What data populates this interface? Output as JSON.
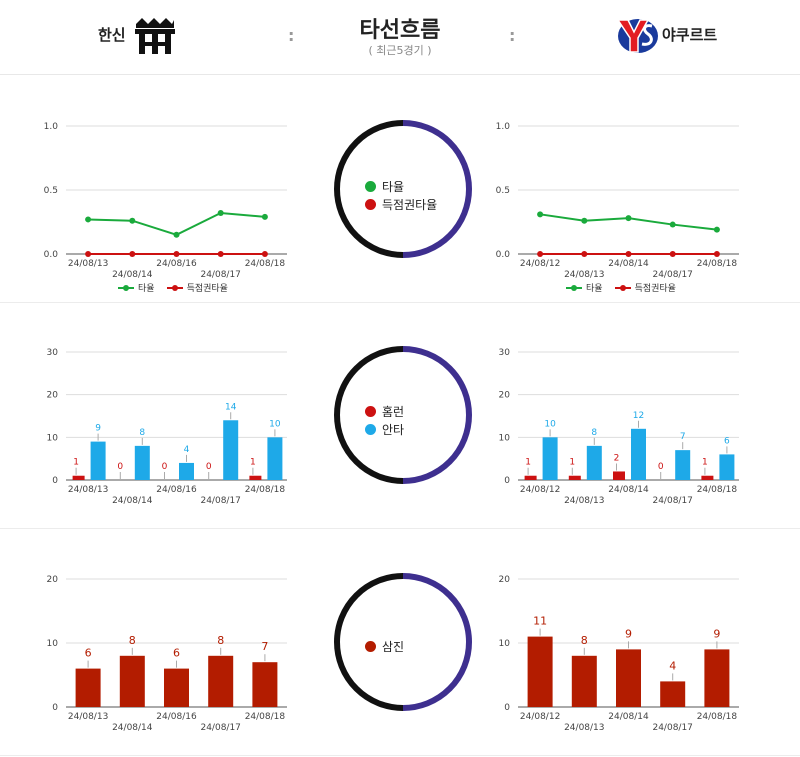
{
  "header": {
    "home_team": "한신",
    "away_team": "야쿠르트",
    "title": "타선흐름",
    "subtitle": "( 최근5경기 )",
    "separator": ":"
  },
  "colors": {
    "avg": "#1aaa3c",
    "risp": "#cc1111",
    "homerun": "#cc1111",
    "hits": "#1ea9e8",
    "strikeouts": "#b31c00",
    "ring_left": "#111111",
    "ring_right": "#3e2f8f"
  },
  "rings": [
    {
      "legend": [
        {
          "label": "타율",
          "color": "#1aaa3c"
        },
        {
          "label": "득점권타율",
          "color": "#cc1111"
        }
      ]
    },
    {
      "legend": [
        {
          "label": "홈런",
          "color": "#cc1111"
        },
        {
          "label": "안타",
          "color": "#1ea9e8"
        }
      ]
    },
    {
      "legend": [
        {
          "label": "삼진",
          "color": "#b31c00"
        }
      ]
    }
  ],
  "line_legend": {
    "avg": "타율",
    "risp": "득점권타율"
  },
  "chart_data": [
    {
      "id": "home_avg",
      "type": "line",
      "x": [
        "24/08/13",
        "24/08/14",
        "24/08/16",
        "24/08/17",
        "24/08/18"
      ],
      "ylim": [
        0,
        1
      ],
      "yticks": [
        "0.0",
        "0.5",
        "1.0"
      ],
      "series": [
        {
          "name": "타율",
          "values": [
            0.27,
            0.26,
            0.15,
            0.32,
            0.29
          ]
        },
        {
          "name": "득점권타율",
          "values": [
            0.0,
            0.0,
            0.0,
            0.0,
            0.0
          ]
        }
      ]
    },
    {
      "id": "away_avg",
      "type": "line",
      "x": [
        "24/08/12",
        "24/08/13",
        "24/08/14",
        "24/08/17",
        "24/08/18"
      ],
      "ylim": [
        0,
        1
      ],
      "yticks": [
        "0.0",
        "0.5",
        "1.0"
      ],
      "series": [
        {
          "name": "타율",
          "values": [
            0.31,
            0.26,
            0.28,
            0.23,
            0.19
          ]
        },
        {
          "name": "득점권타율",
          "values": [
            0.0,
            0.0,
            0.0,
            0.0,
            0.0
          ]
        }
      ]
    },
    {
      "id": "home_hits",
      "type": "bar",
      "x": [
        "24/08/13",
        "24/08/14",
        "24/08/16",
        "24/08/17",
        "24/08/18"
      ],
      "ylim": [
        0,
        30
      ],
      "yticks": [
        "0",
        "10",
        "20",
        "30"
      ],
      "series": [
        {
          "name": "홈런",
          "values": [
            1,
            0,
            0,
            0,
            1
          ]
        },
        {
          "name": "안타",
          "values": [
            9,
            8,
            4,
            14,
            10
          ]
        }
      ]
    },
    {
      "id": "away_hits",
      "type": "bar",
      "x": [
        "24/08/12",
        "24/08/13",
        "24/08/14",
        "24/08/17",
        "24/08/18"
      ],
      "ylim": [
        0,
        30
      ],
      "yticks": [
        "0",
        "10",
        "20",
        "30"
      ],
      "series": [
        {
          "name": "홈런",
          "values": [
            1,
            1,
            2,
            0,
            1
          ]
        },
        {
          "name": "안타",
          "values": [
            10,
            8,
            12,
            7,
            6
          ]
        }
      ]
    },
    {
      "id": "home_so",
      "type": "bar",
      "x": [
        "24/08/13",
        "24/08/14",
        "24/08/16",
        "24/08/17",
        "24/08/18"
      ],
      "ylim": [
        0,
        20
      ],
      "yticks": [
        "0",
        "10",
        "20"
      ],
      "series": [
        {
          "name": "삼진",
          "values": [
            6,
            8,
            6,
            8,
            7
          ]
        }
      ]
    },
    {
      "id": "away_so",
      "type": "bar",
      "x": [
        "24/08/12",
        "24/08/13",
        "24/08/14",
        "24/08/17",
        "24/08/18"
      ],
      "ylim": [
        0,
        20
      ],
      "yticks": [
        "0",
        "10",
        "20"
      ],
      "series": [
        {
          "name": "삼진",
          "values": [
            11,
            8,
            9,
            4,
            9
          ]
        }
      ]
    }
  ]
}
